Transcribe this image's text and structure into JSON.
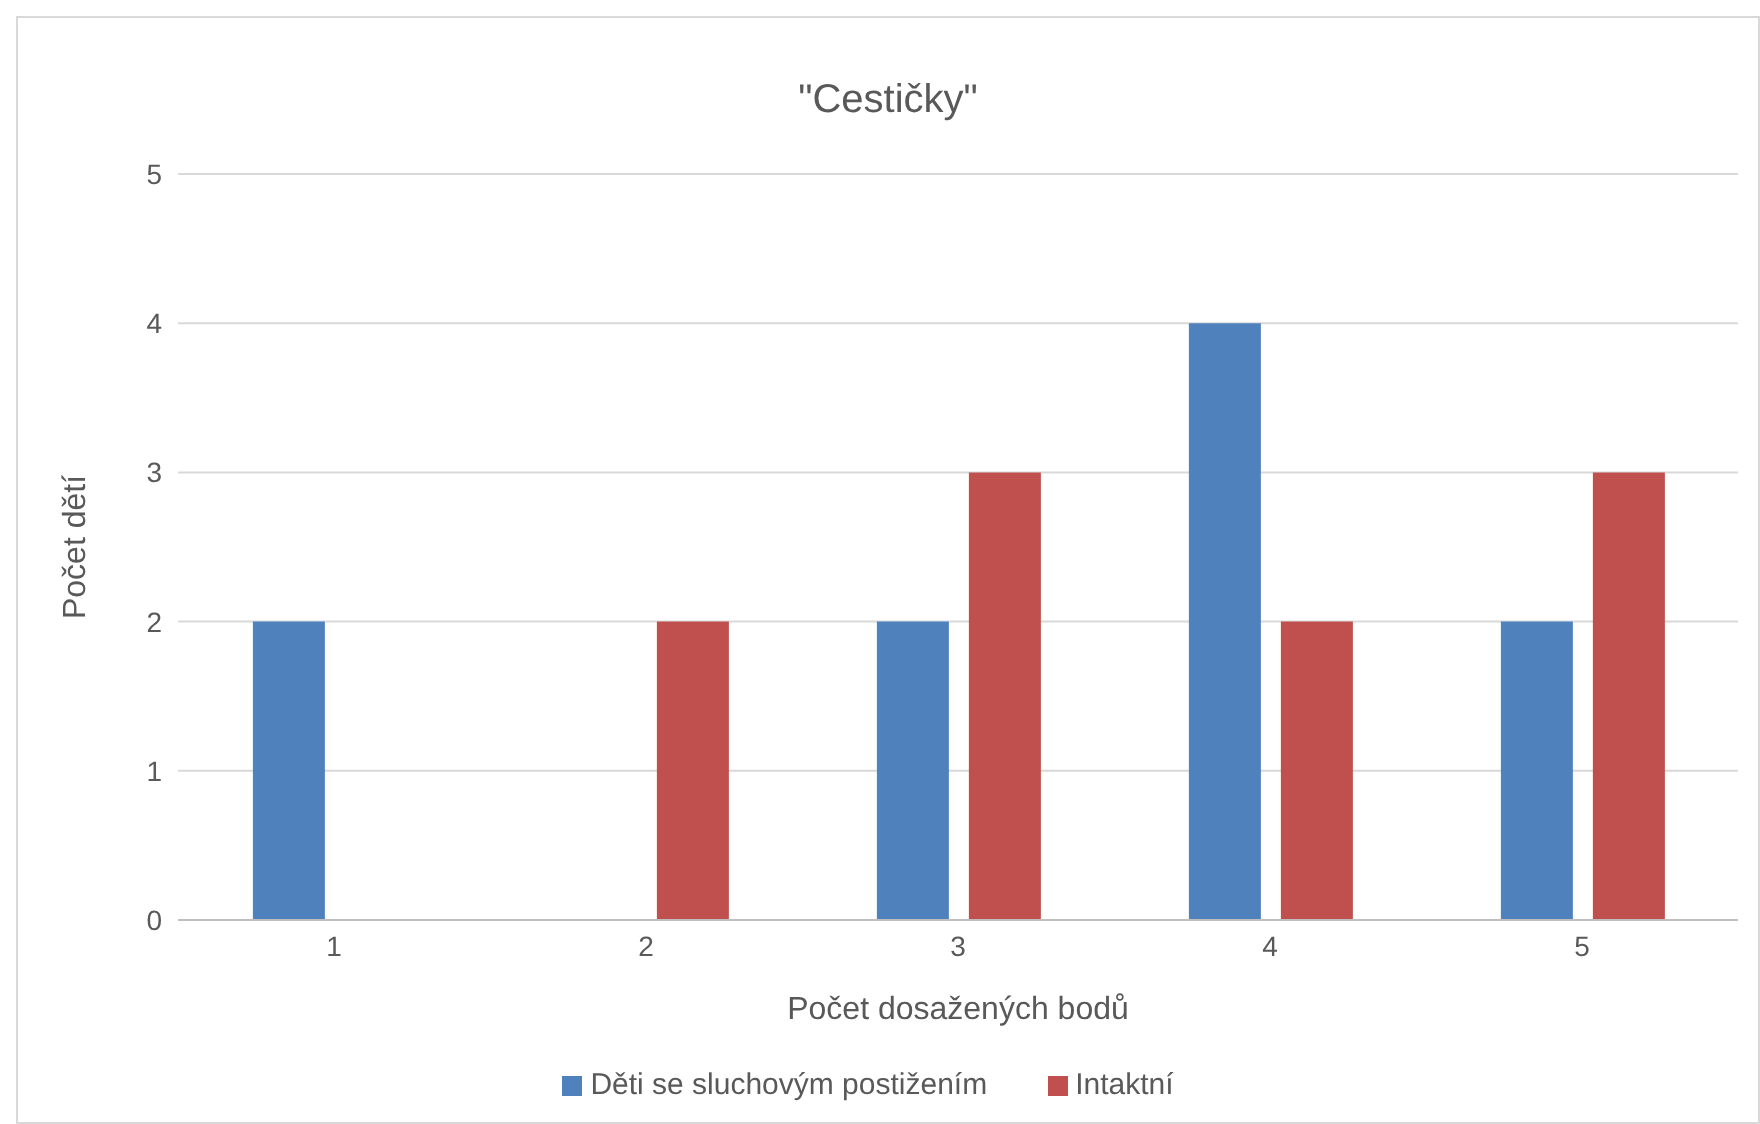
{
  "chart_data": {
    "type": "bar",
    "title": "\"Cestičky\"",
    "xlabel": "Počet dosažených bodů",
    "ylabel": "Počet dětí",
    "categories": [
      "1",
      "2",
      "3",
      "4",
      "5"
    ],
    "series": [
      {
        "name": "Děti se sluchovým postižením",
        "color": "#4f81bd",
        "values": [
          2,
          0,
          2,
          4,
          2
        ]
      },
      {
        "name": "Intaktní",
        "color": "#c0504d",
        "values": [
          0,
          2,
          3,
          2,
          3
        ]
      }
    ],
    "ylim": [
      0,
      5
    ],
    "yticks": [
      0,
      1,
      2,
      3,
      4,
      5
    ],
    "grid": "y",
    "legend": "bottom"
  }
}
